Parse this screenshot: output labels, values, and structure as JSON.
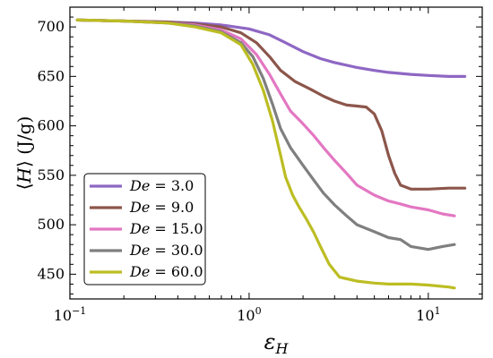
{
  "chart_data": {
    "type": "line",
    "xlabel": "εH",
    "ylabel": "⟨H⟩ (J/g)",
    "xscale": "log",
    "xlim": [
      0.1,
      20
    ],
    "ylim": [
      425,
      720
    ],
    "xticks": [
      0.1,
      1,
      10
    ],
    "xtick_labels": [
      {
        "base": "10",
        "exp": "−1"
      },
      {
        "base": "10",
        "exp": "0"
      },
      {
        "base": "10",
        "exp": "1"
      }
    ],
    "yticks": [
      450,
      500,
      550,
      600,
      650,
      700
    ],
    "ytick_labels": [
      "450",
      "500",
      "550",
      "600",
      "650",
      "700"
    ],
    "grid": false,
    "legend_position": "lower-left",
    "series": [
      {
        "name": "De = 3.0",
        "var": "De",
        "value": "= 3.0",
        "color": "#8e67c4",
        "points": [
          [
            0.11,
            707
          ],
          [
            0.2,
            706
          ],
          [
            0.35,
            705
          ],
          [
            0.5,
            704
          ],
          [
            0.7,
            702
          ],
          [
            1,
            698
          ],
          [
            1.3,
            692
          ],
          [
            1.6,
            684
          ],
          [
            2,
            675
          ],
          [
            2.5,
            668
          ],
          [
            3,
            664
          ],
          [
            4,
            659
          ],
          [
            5,
            656
          ],
          [
            6,
            654
          ],
          [
            8,
            652
          ],
          [
            10,
            651
          ],
          [
            13,
            650
          ],
          [
            16,
            650
          ]
        ]
      },
      {
        "name": "De = 9.0",
        "var": "De",
        "value": "= 9.0",
        "color": "#8c564b",
        "points": [
          [
            0.11,
            707
          ],
          [
            0.2,
            706
          ],
          [
            0.35,
            705
          ],
          [
            0.5,
            703
          ],
          [
            0.7,
            700
          ],
          [
            0.9,
            694
          ],
          [
            1.1,
            684
          ],
          [
            1.3,
            670
          ],
          [
            1.5,
            656
          ],
          [
            1.8,
            645
          ],
          [
            2.2,
            637
          ],
          [
            2.6,
            630
          ],
          [
            3,
            625
          ],
          [
            3.5,
            621
          ],
          [
            4,
            620
          ],
          [
            4.5,
            619
          ],
          [
            5,
            612
          ],
          [
            5.5,
            595
          ],
          [
            6,
            570
          ],
          [
            6.5,
            552
          ],
          [
            7,
            540
          ],
          [
            8,
            536
          ],
          [
            10,
            536
          ],
          [
            13,
            537
          ],
          [
            16,
            537
          ]
        ]
      },
      {
        "name": "De = 15.0",
        "var": "De",
        "value": "= 15.0",
        "color": "#e377c2",
        "points": [
          [
            0.11,
            707
          ],
          [
            0.2,
            706
          ],
          [
            0.35,
            704
          ],
          [
            0.5,
            702
          ],
          [
            0.7,
            697
          ],
          [
            0.9,
            688
          ],
          [
            1.1,
            672
          ],
          [
            1.3,
            652
          ],
          [
            1.5,
            632
          ],
          [
            1.7,
            615
          ],
          [
            2,
            602
          ],
          [
            2.3,
            590
          ],
          [
            2.6,
            578
          ],
          [
            3,
            565
          ],
          [
            3.5,
            552
          ],
          [
            4,
            540
          ],
          [
            5,
            530
          ],
          [
            6,
            524
          ],
          [
            7,
            521
          ],
          [
            8,
            518
          ],
          [
            10,
            515
          ],
          [
            12,
            511
          ],
          [
            14,
            509
          ]
        ]
      },
      {
        "name": "De = 30.0",
        "var": "De",
        "value": "= 30.0",
        "color": "#7f7f7f",
        "points": [
          [
            0.11,
            707
          ],
          [
            0.2,
            706
          ],
          [
            0.35,
            704
          ],
          [
            0.5,
            701
          ],
          [
            0.7,
            695
          ],
          [
            0.9,
            684
          ],
          [
            1.05,
            670
          ],
          [
            1.2,
            648
          ],
          [
            1.35,
            622
          ],
          [
            1.5,
            597
          ],
          [
            1.7,
            578
          ],
          [
            2,
            560
          ],
          [
            2.3,
            545
          ],
          [
            2.6,
            532
          ],
          [
            3,
            520
          ],
          [
            3.5,
            509
          ],
          [
            4,
            500
          ],
          [
            5,
            493
          ],
          [
            6,
            487
          ],
          [
            7,
            485
          ],
          [
            8,
            478
          ],
          [
            10,
            475
          ],
          [
            12,
            478
          ],
          [
            14,
            480
          ]
        ]
      },
      {
        "name": "De = 60.0",
        "var": "De",
        "value": "= 60.0",
        "color": "#bcbd22",
        "points": [
          [
            0.11,
            707
          ],
          [
            0.2,
            706
          ],
          [
            0.35,
            704
          ],
          [
            0.5,
            700
          ],
          [
            0.7,
            694
          ],
          [
            0.9,
            682
          ],
          [
            1.05,
            662
          ],
          [
            1.2,
            636
          ],
          [
            1.35,
            605
          ],
          [
            1.5,
            570
          ],
          [
            1.6,
            548
          ],
          [
            1.75,
            530
          ],
          [
            1.9,
            518
          ],
          [
            2.1,
            505
          ],
          [
            2.3,
            492
          ],
          [
            2.5,
            478
          ],
          [
            2.8,
            460
          ],
          [
            3.2,
            447
          ],
          [
            4,
            443
          ],
          [
            5,
            441
          ],
          [
            6,
            440
          ],
          [
            8,
            440
          ],
          [
            10,
            439
          ],
          [
            13,
            437
          ],
          [
            14,
            436
          ]
        ]
      }
    ]
  }
}
